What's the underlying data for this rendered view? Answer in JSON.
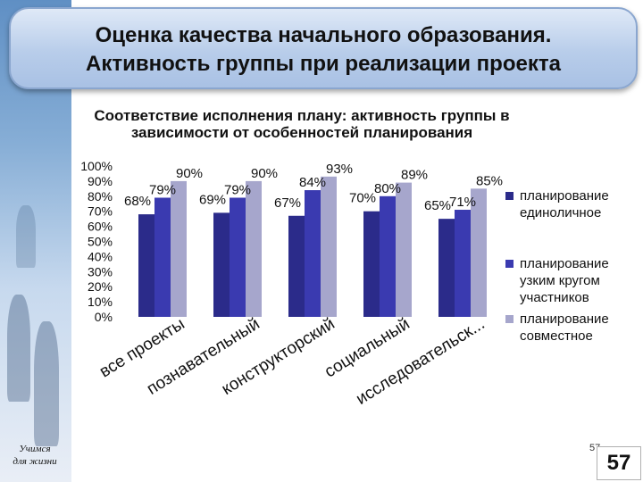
{
  "header": {
    "title_line_1": "Оценка качества начального образования.",
    "title_line_2": "Активность группы при реализации проекта"
  },
  "chart_data": {
    "type": "bar",
    "title": "Соответствие исполнения плану: активность группы в зависимости от особенностей планирования",
    "categories": [
      "все проекты",
      "познавательный",
      "конструкторский",
      "социальный",
      "исследовательск..."
    ],
    "series": [
      {
        "name": "планирование единоличное",
        "values": [
          68,
          69,
          67,
          70,
          65
        ],
        "color": "#2b2b8a"
      },
      {
        "name": "планирование узким кругом участников",
        "values": [
          79,
          79,
          84,
          80,
          71
        ],
        "color": "#3a3ab0"
      },
      {
        "name": "планирование совместное",
        "values": [
          90,
          90,
          93,
          89,
          85
        ],
        "color": "#a6a6cc"
      }
    ],
    "yticks": [
      "0%",
      "10%",
      "20%",
      "30%",
      "40%",
      "50%",
      "60%",
      "70%",
      "80%",
      "90%",
      "100%"
    ],
    "ylim": [
      0,
      100
    ],
    "grid": false,
    "legend": "right"
  },
  "footer": {
    "logo_line_1": "Учимся",
    "logo_line_2": "для жизни",
    "page_small": "57",
    "page_big": "57"
  }
}
